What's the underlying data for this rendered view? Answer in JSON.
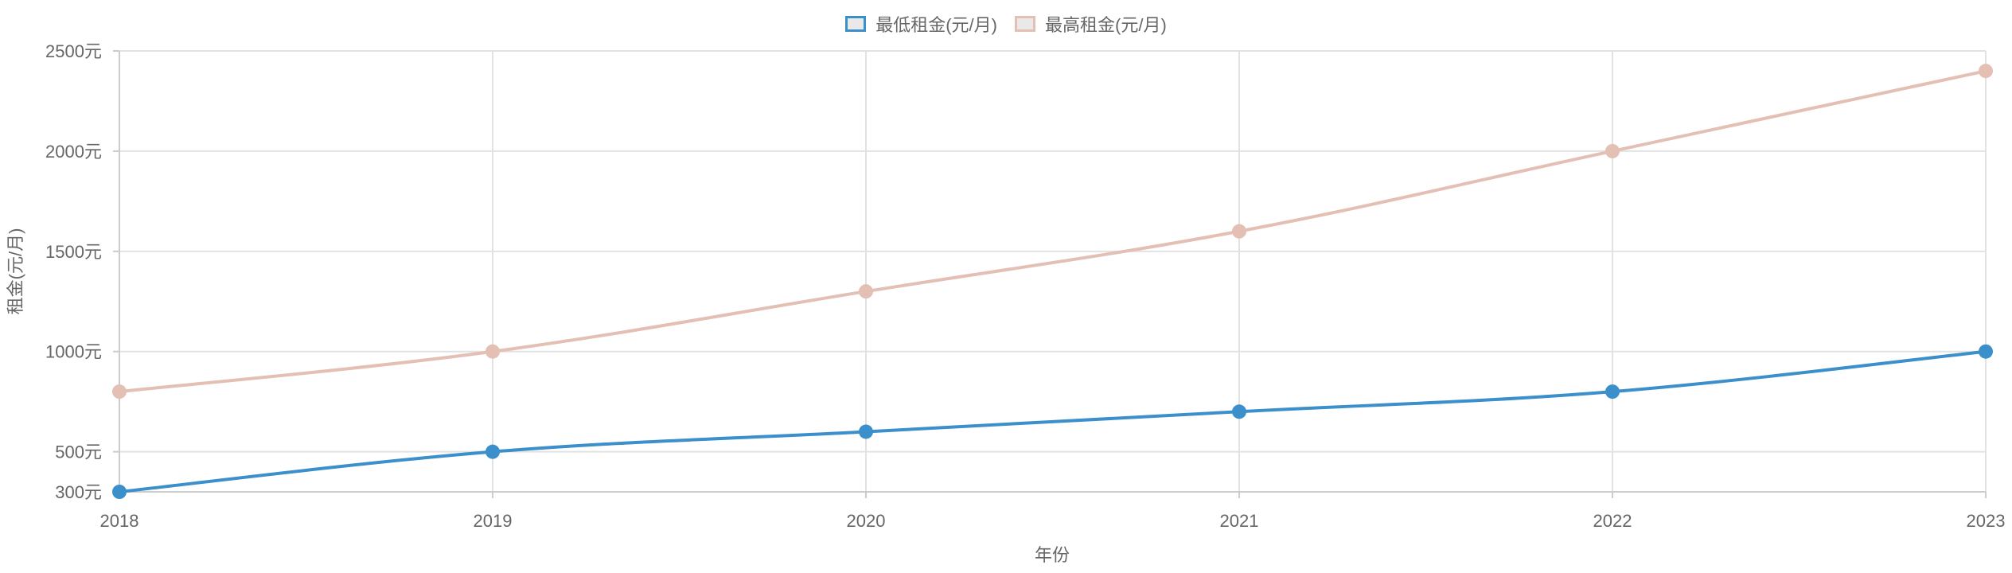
{
  "chart_data": {
    "type": "line",
    "categories": [
      "2018",
      "2019",
      "2020",
      "2021",
      "2022",
      "2023"
    ],
    "series": [
      {
        "name": "最低租金(元/月)",
        "color": "#3b8fcb",
        "values": [
          300,
          500,
          600,
          700,
          800,
          1000
        ]
      },
      {
        "name": "最高租金(元/月)",
        "color": "#e3bfb4",
        "values": [
          800,
          1000,
          1300,
          1600,
          2000,
          2400
        ]
      }
    ],
    "xlabel": "年份",
    "ylabel": "租金(元/月)",
    "ylim": [
      300,
      2500
    ],
    "yticks": [
      300,
      500,
      1000,
      1500,
      2000,
      2500
    ],
    "ytick_labels": [
      "300元",
      "500元",
      "1000元",
      "1500元",
      "2000元",
      "2500元"
    ],
    "grid": true,
    "legend_position": "top-center"
  }
}
